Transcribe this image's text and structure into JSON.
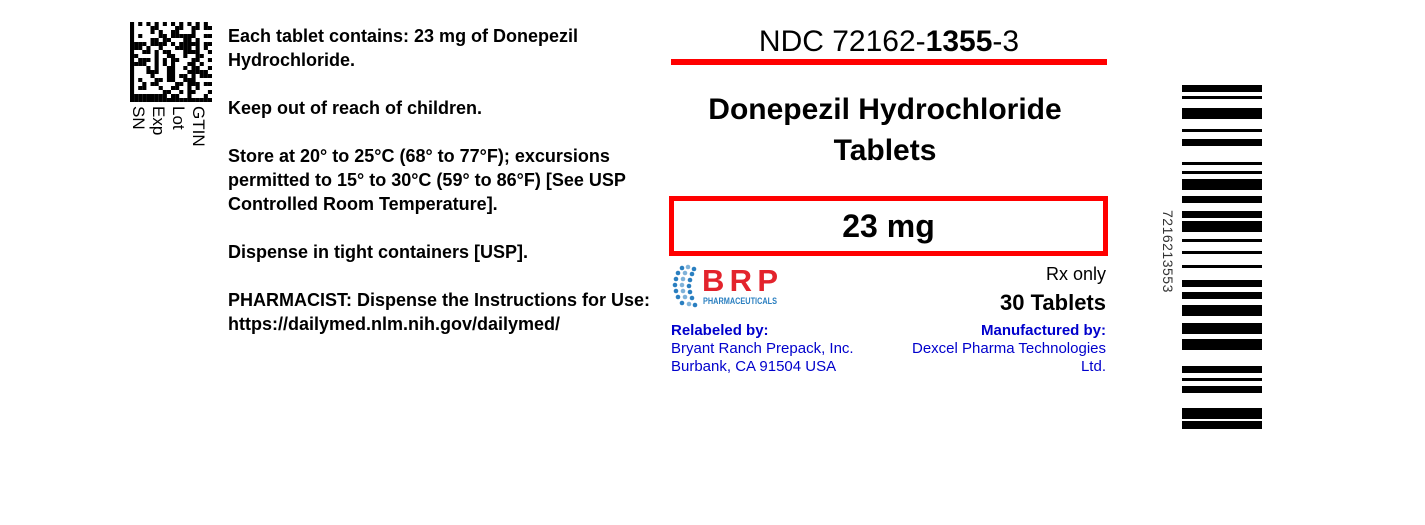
{
  "gs1_labels": "GTIN\nLot\nExp\nSN",
  "left_text": {
    "contents": "Each tablet contains: 23 mg of Donepezil Hydrochloride.",
    "children": "Keep out of reach of children.",
    "storage": "Store at 20° to 25°C (68° to 77°F); excursions permitted to 15° to 30°C (59° to 86°F) [See USP Controlled Room Temperature].",
    "dispense": "Dispense in tight containers [USP].",
    "pharmacist": "PHARMACIST: Dispense the Instructions for Use:",
    "url": "https://dailymed.nlm.nih.gov/dailymed/"
  },
  "ndc": {
    "prefix": "NDC 72162-",
    "product": "1355",
    "suffix": "-3"
  },
  "title_line1": "Donepezil Hydrochloride",
  "title_line2": "Tablets",
  "strength": "23 mg",
  "logo": {
    "name": "BRP",
    "sub": "PHARMACEUTICALS",
    "red": "#e3232c",
    "blue": "#2a7fc0"
  },
  "rx": "Rx only",
  "count": "30 Tablets",
  "relabeler": {
    "heading": "Relabeled by:",
    "line1": "Bryant Ranch Prepack, Inc.",
    "line2": "Burbank, CA 91504 USA"
  },
  "manufacturer": {
    "heading": "Manufactured by:",
    "line1": "Dexcel Pharma Technologies",
    "line2": "Ltd."
  },
  "barcode_number": "7216213553",
  "colors": {
    "accent_red": "#ff0000",
    "company_blue": "#0000cc"
  }
}
